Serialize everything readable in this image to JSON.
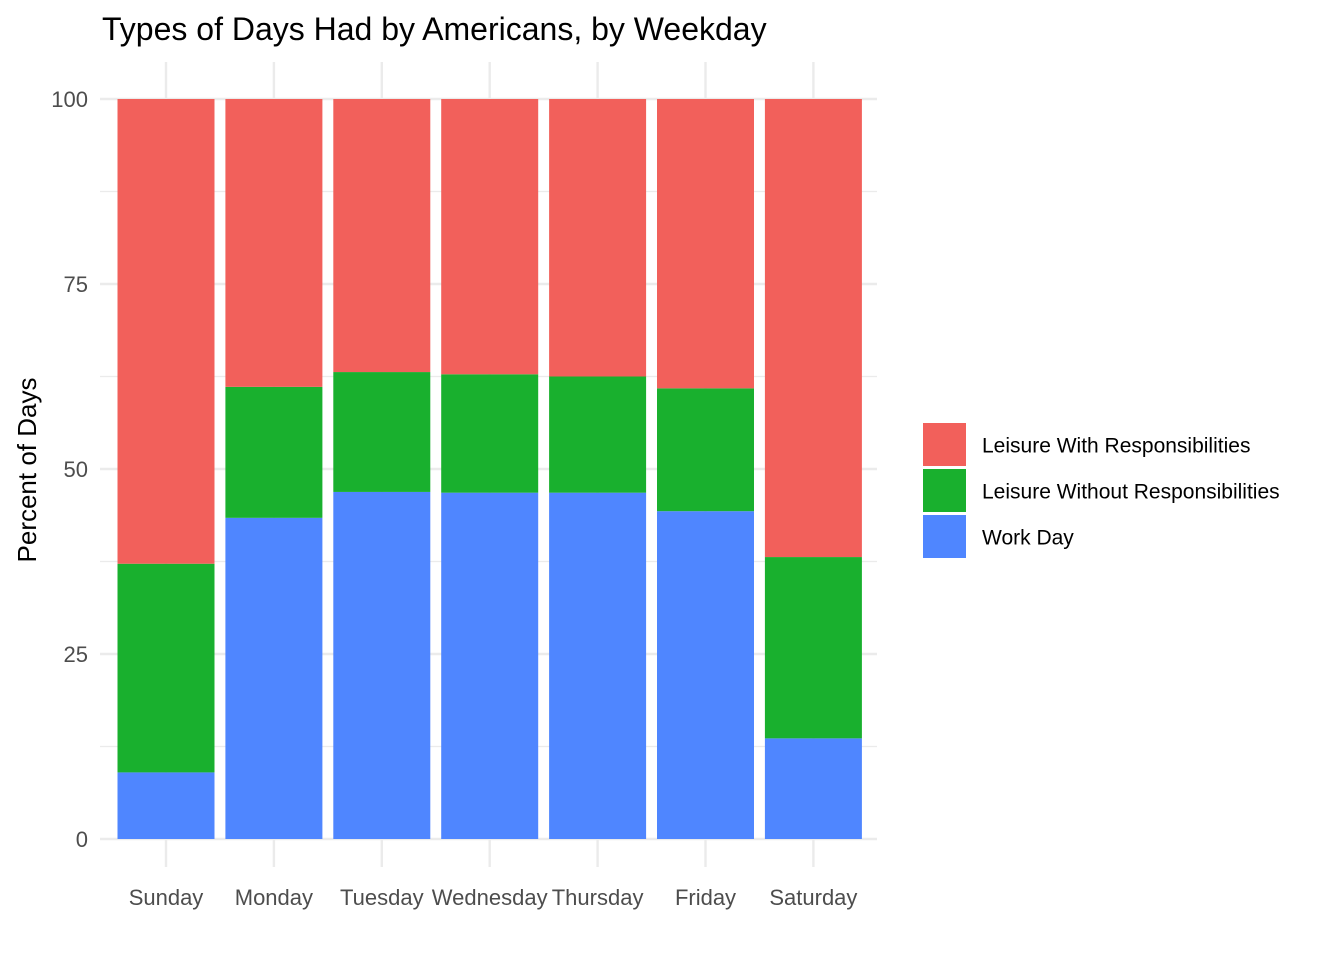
{
  "chart_data": {
    "type": "bar",
    "stacked": true,
    "title": "Types of Days Had by Americans, by Weekday",
    "xlabel": "",
    "ylabel": "Percent of Days",
    "ylim": [
      0,
      100
    ],
    "yticks": [
      0,
      25,
      50,
      75,
      100
    ],
    "grid": true,
    "legend_position": "right",
    "categories": [
      "Sunday",
      "Monday",
      "Tuesday",
      "Wednesday",
      "Thursday",
      "Friday",
      "Saturday"
    ],
    "series": [
      {
        "name": "Work Day",
        "color": "#4f86ff",
        "values": [
          9.0,
          43.4,
          46.9,
          46.8,
          46.8,
          44.3,
          13.6
        ]
      },
      {
        "name": "Leisure Without Responsibilities",
        "color": "#19b02e",
        "values": [
          28.2,
          17.7,
          16.2,
          16.0,
          15.7,
          16.6,
          24.5
        ]
      },
      {
        "name": "Leisure With Responsibilities",
        "color": "#f2605b",
        "values": [
          62.8,
          38.9,
          36.9,
          37.2,
          37.5,
          39.1,
          61.9
        ]
      }
    ],
    "legend_order": [
      "Leisure With Responsibilities",
      "Leisure Without Responsibilities",
      "Work Day"
    ]
  }
}
